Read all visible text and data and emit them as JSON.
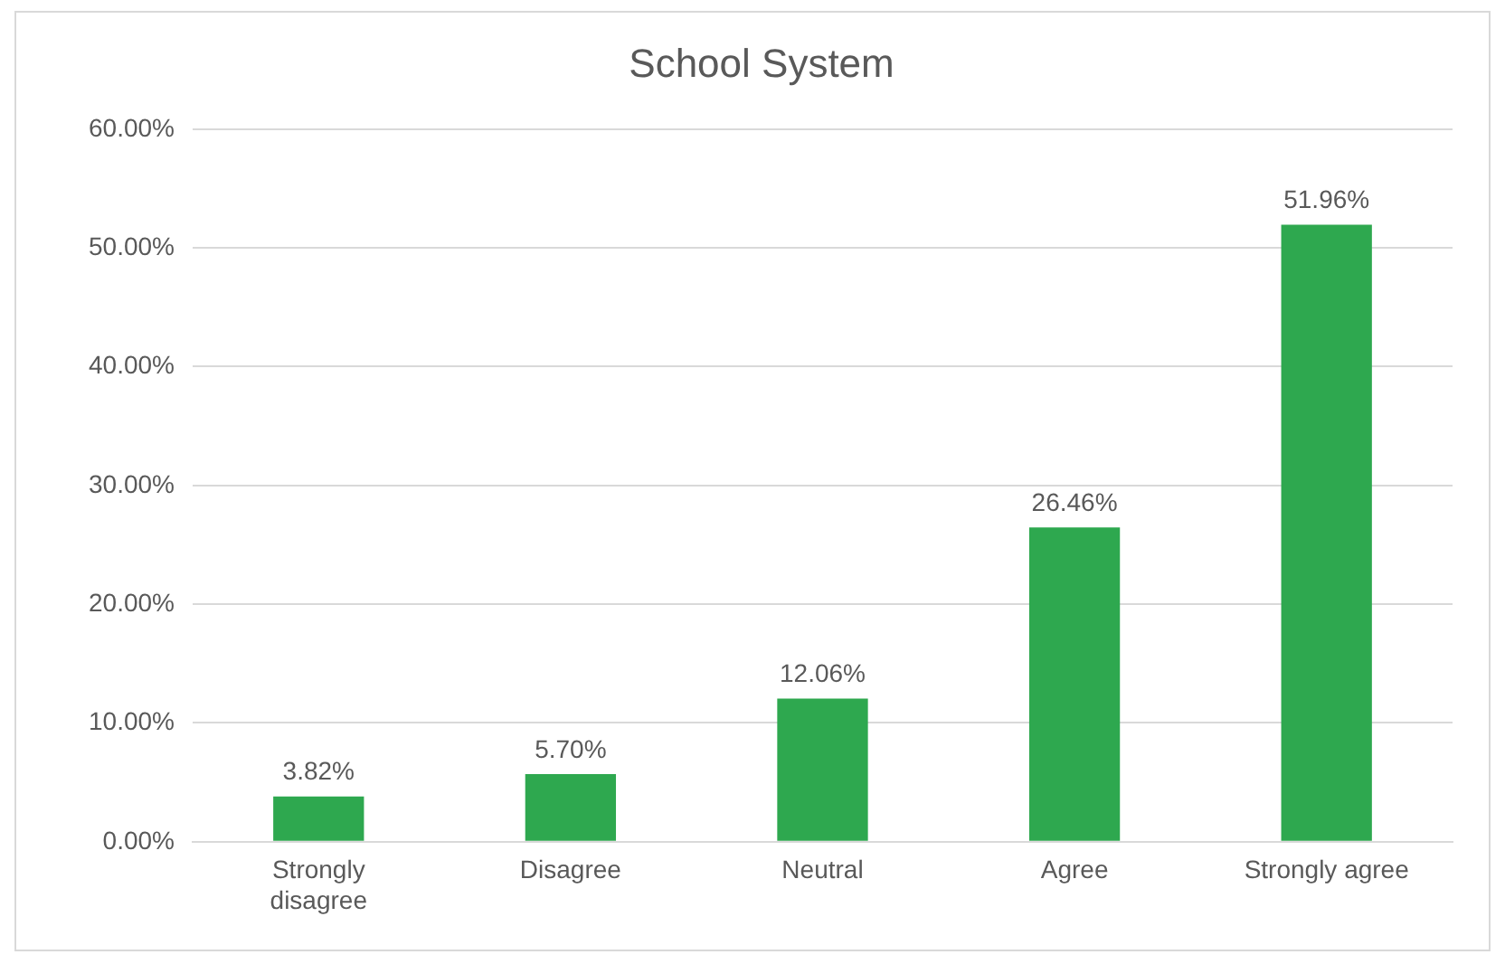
{
  "chart_data": {
    "type": "bar",
    "title": "School System",
    "categories": [
      "Strongly disagree",
      "Disagree",
      "Neutral",
      "Agree",
      "Strongly agree"
    ],
    "values": [
      3.82,
      5.7,
      12.06,
      26.46,
      51.96
    ],
    "value_labels": [
      "3.82%",
      "5.70%",
      "12.06%",
      "26.46%",
      "51.96%"
    ],
    "color": "#2ea84f",
    "ylim": [
      0,
      60
    ],
    "yticks": [
      {
        "value": 0,
        "label": "0.00%"
      },
      {
        "value": 10,
        "label": "10.00%"
      },
      {
        "value": 20,
        "label": "20.00%"
      },
      {
        "value": 30,
        "label": "30.00%"
      },
      {
        "value": 40,
        "label": "40.00%"
      },
      {
        "value": 50,
        "label": "50.00%"
      },
      {
        "value": 60,
        "label": "60.00%"
      }
    ],
    "grid": "y",
    "legend": false
  }
}
